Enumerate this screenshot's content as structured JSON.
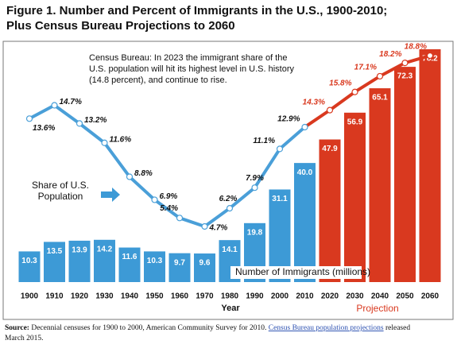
{
  "chart_data": {
    "type": "bar_line",
    "title": [
      "Figure 1. Number and Percent of Immigrants in the U.S., 1900-2010;",
      "Plus Census Bureau Projections to 2060"
    ],
    "categories": [
      "1900",
      "1910",
      "1920",
      "1930",
      "1940",
      "1950",
      "1960",
      "1970",
      "1980",
      "1990",
      "2000",
      "2010",
      "2020",
      "2030",
      "2040",
      "2050",
      "2060"
    ],
    "x_label": "Year",
    "projection_label": "Projection",
    "series": [
      {
        "name": "Number of Immigrants (millions)",
        "type": "bar",
        "values": [
          10.3,
          13.5,
          13.9,
          14.2,
          11.6,
          10.3,
          9.7,
          9.6,
          14.1,
          19.8,
          31.1,
          40.0,
          47.9,
          56.9,
          65.1,
          72.3,
          78.2
        ],
        "value_labels": [
          "10.3",
          "13.5",
          "13.9",
          "14.2",
          "11.6",
          "10.3",
          "9.7",
          "9.6",
          "14.1",
          "19.8",
          "31.1",
          "40.0",
          "47.9",
          "56.9",
          "65.1",
          "72.3",
          "78.2"
        ],
        "colors": [
          "#3d9ad6",
          "#3d9ad6",
          "#3d9ad6",
          "#3d9ad6",
          "#3d9ad6",
          "#3d9ad6",
          "#3d9ad6",
          "#3d9ad6",
          "#3d9ad6",
          "#3d9ad6",
          "#3d9ad6",
          "#3d9ad6",
          "#d9391f",
          "#d9391f",
          "#d9391f",
          "#d9391f",
          "#d9391f"
        ]
      },
      {
        "name": "Share of U.S. Population",
        "type": "line",
        "values": [
          13.6,
          14.7,
          13.2,
          11.6,
          8.8,
          6.9,
          5.4,
          4.7,
          6.2,
          7.9,
          11.1,
          12.9,
          14.3,
          15.8,
          17.1,
          18.2,
          18.8
        ],
        "value_labels": [
          "13.6%",
          "14.7%",
          "13.2%",
          "11.6%",
          "8.8%",
          "6.9%",
          "5.4%",
          "4.7%",
          "6.2%",
          "7.9%",
          "11.1%",
          "12.9%",
          "14.3%",
          "15.8%",
          "17.1%",
          "18.2%",
          "18.8%"
        ],
        "colors": [
          "#4a9fd8",
          "#4a9fd8",
          "#4a9fd8",
          "#4a9fd8",
          "#4a9fd8",
          "#4a9fd8",
          "#4a9fd8",
          "#4a9fd8",
          "#4a9fd8",
          "#4a9fd8",
          "#4a9fd8",
          "#4a9fd8",
          "#d9391f",
          "#d9391f",
          "#d9391f",
          "#d9391f",
          "#d9391f"
        ],
        "value_label_colors": [
          "#111",
          "#111",
          "#111",
          "#111",
          "#111",
          "#111",
          "#111",
          "#111",
          "#111",
          "#111",
          "#111",
          "#111",
          "#d9391f",
          "#d9391f",
          "#d9391f",
          "#d9391f",
          "#d9391f"
        ]
      }
    ],
    "annotation": [
      "Census Bureau: In 2023 the immigrant share of the",
      "U.S. population will hit its highest level in U.S. history",
      "(14.8 percent), and continue to rise."
    ],
    "source": {
      "label": "Source:",
      "text": "Decennial censuses for 1900 to 2000, American Community Survey for 2010.",
      "link": "Census Bureau population projections",
      "tail": "released",
      "line2": "March 2015."
    }
  }
}
